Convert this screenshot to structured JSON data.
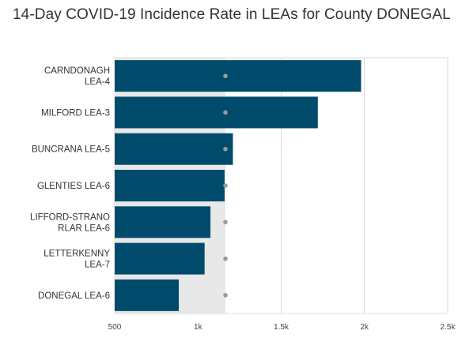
{
  "chart_data": {
    "type": "bar",
    "orientation": "horizontal",
    "title": "14-Day COVID-19 Incidence Rate in LEAs for County DONEGAL",
    "categories": [
      [
        "CARNDONAGH",
        "LEA-4"
      ],
      [
        "MILFORD LEA-3"
      ],
      [
        "BUNCRANA LEA-5"
      ],
      [
        "GLENTIES LEA-6"
      ],
      [
        "LIFFORD-STRANO",
        "RLAR LEA-6"
      ],
      [
        "LETTERKENNY",
        "LEA-7"
      ],
      [
        "DONEGAL LEA-6"
      ]
    ],
    "values": [
      1980,
      1720,
      1210,
      1160,
      1075,
      1040,
      885
    ],
    "reference_value": 1165,
    "xlim": [
      500,
      2500
    ],
    "x_ticks": [
      500,
      1000,
      1500,
      2000,
      2500
    ],
    "x_tick_labels": [
      "500",
      "1k",
      "1.5k",
      "2k",
      "2.5k"
    ],
    "grid": true,
    "colors": {
      "bar": "#004b6b",
      "reference_band": "#e8e8e8",
      "reference_marker": "#9a9a9a",
      "grid": "#d9d9d9"
    }
  }
}
